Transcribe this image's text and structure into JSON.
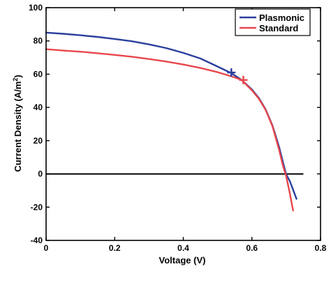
{
  "chart_data": {
    "type": "line",
    "title": "",
    "xlabel": "Voltage (V)",
    "ylabel_main": "Current Density (A/m",
    "ylabel_sup": "2",
    "ylabel_close": ")",
    "xlim": [
      0,
      0.8
    ],
    "ylim": [
      -40,
      100
    ],
    "xticks": [
      0,
      0.2,
      0.4,
      0.6,
      0.8
    ],
    "xtick_labels": [
      "0",
      "0.2",
      "0.4",
      "0.6",
      "0.8"
    ],
    "yticks": [
      -40,
      -20,
      0,
      20,
      40,
      60,
      80,
      100
    ],
    "ytick_labels": [
      "-40",
      "-20",
      "0",
      "20",
      "40",
      "60",
      "80",
      "100"
    ],
    "grid": false,
    "legend_position": "top-right",
    "zero_line": {
      "y": 0,
      "x_range": [
        0,
        0.75
      ],
      "color": "#000000"
    },
    "series": [
      {
        "name": "Plasmonic",
        "color": "#2b3f9e",
        "x": [
          0,
          0.05,
          0.1,
          0.15,
          0.2,
          0.25,
          0.3,
          0.35,
          0.4,
          0.45,
          0.5,
          0.54,
          0.57,
          0.6,
          0.62,
          0.64,
          0.66,
          0.68,
          0.69,
          0.7,
          0.71,
          0.72,
          0.73
        ],
        "y": [
          85,
          84.3,
          83.4,
          82.4,
          81.2,
          79.8,
          77.9,
          75.7,
          72.8,
          69.4,
          64.6,
          60.6,
          56.5,
          50.8,
          45.7,
          38.8,
          29.1,
          15.6,
          7.4,
          -0.4,
          -4.1,
          -9.5,
          -15
        ],
        "marker": {
          "x": 0.54,
          "y": 61,
          "symbol": "+"
        }
      },
      {
        "name": "Standard",
        "color": "#e8474c",
        "x": [
          0,
          0.05,
          0.1,
          0.15,
          0.2,
          0.25,
          0.3,
          0.35,
          0.4,
          0.45,
          0.5,
          0.54,
          0.57,
          0.6,
          0.62,
          0.64,
          0.66,
          0.68,
          0.69,
          0.7,
          0.71,
          0.72
        ],
        "y": [
          75,
          74.2,
          73.5,
          72.6,
          71.6,
          70.5,
          69.1,
          67.6,
          65.8,
          63.7,
          61.2,
          58.7,
          56.5,
          50.3,
          45.3,
          38.5,
          28.7,
          13.8,
          5.2,
          -1.5,
          -11.2,
          -22
        ],
        "marker": {
          "x": 0.575,
          "y": 56.5,
          "symbol": "+"
        }
      }
    ]
  }
}
